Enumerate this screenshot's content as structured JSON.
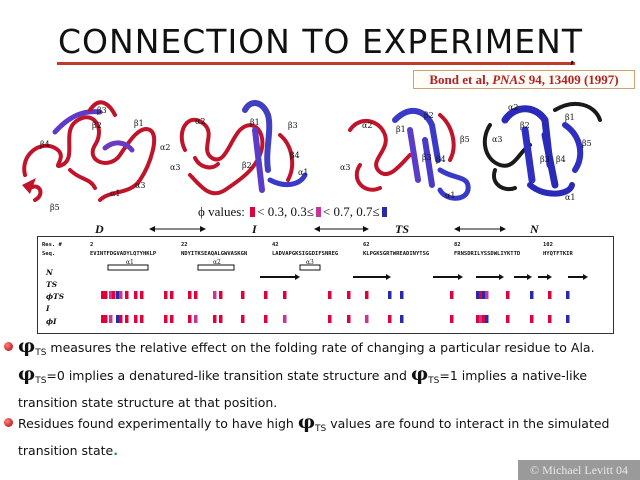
{
  "title": "CONNECTION TO EXPERIMENT",
  "citation": {
    "authors": "Bond et al, ",
    "journal": "PNAS",
    "rest": " 94, 13409 (1997)"
  },
  "structure_labels": {
    "s1": [
      "β3",
      "β2",
      "β1",
      "α2",
      "β4",
      "β5",
      "α1",
      "α3"
    ],
    "s2": [
      "α2",
      "β1",
      "β3",
      "β2",
      "α3",
      "β4",
      "α1"
    ],
    "s3": [
      "α2",
      "β1",
      "β2",
      "β5",
      "β3",
      "β4",
      "α3",
      "α1"
    ],
    "s4": [
      "α2",
      "β2",
      "β1",
      "β5",
      "α3",
      "β3",
      "β4",
      "α1"
    ]
  },
  "phi_legend": {
    "prefix": "ϕ values:",
    "low": "< 0.3,",
    "mid": "0.3≤",
    "mid2": "< 0.7,",
    "high": "0.7≤"
  },
  "stages": [
    "D",
    "I",
    "TS",
    "N"
  ],
  "sequence": {
    "res_label": "Res. #",
    "seq_label": "Seq.",
    "numbers": [
      "2",
      "22",
      "42",
      "62",
      "82",
      "102"
    ],
    "segments": [
      "EVINTFDGVADYLQTYHKLP",
      "NDYITKSEAQALGWVASKGN",
      "LADVAPGKSIGGDIFSNREG",
      "KLPGKSGRTWREADINYTSG",
      "FRNSDRILYSSDWLIYKTTD",
      "HYQTFTKIR"
    ],
    "row_labels": [
      "N",
      "TS",
      "ϕTS",
      "I",
      "ϕI"
    ],
    "ss_labels": [
      "α1",
      "α2",
      "α3"
    ]
  },
  "colors": {
    "low": "#e0003a",
    "mid": "#cc3399",
    "high": "#2a2aa8",
    "accent": "#c0392b"
  },
  "bullets": {
    "b1_sym": "φ",
    "b1_sub": "TS",
    "b1_t1": " measures the relative effect on the folding rate of changing a particular residue to Ala. ",
    "b1_sym2": "φ",
    "b1_sub2": "TS",
    "b1_t2": "=0 implies a denatured-like transition state structure and ",
    "b1_sym3": "φ",
    "b1_sub3": "TS",
    "b1_t3": "=1 implies a native-like transition state structure at that position.",
    "b2_t1": "Residues found experimentally to have high ",
    "b2_sym": "φ",
    "b2_sub": "TS",
    "b2_t2": " values are found to interact in the simulated transition state",
    "b2_end": "."
  },
  "copyright": "© Michael Levitt 04"
}
